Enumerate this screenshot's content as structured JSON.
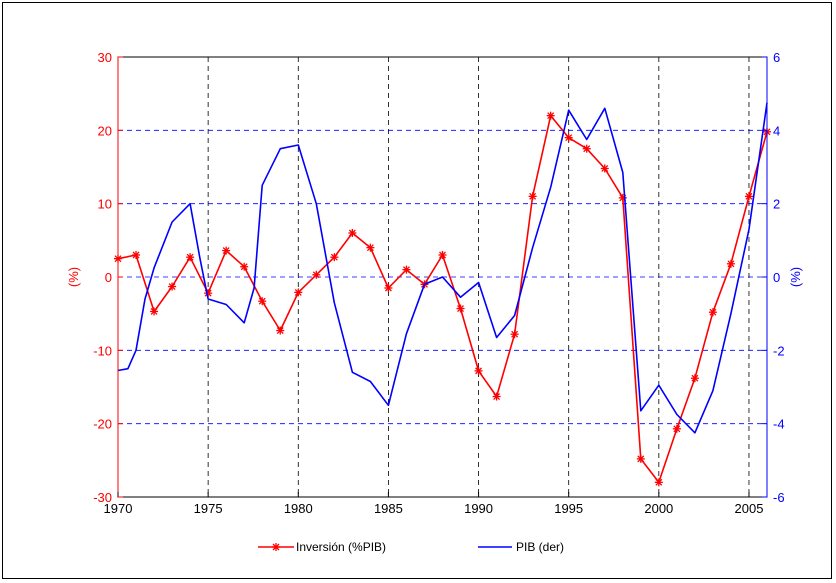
{
  "chart_data": {
    "type": "line",
    "x": [
      1970,
      1971,
      1972,
      1973,
      1974,
      1975,
      1976,
      1977,
      1978,
      1979,
      1980,
      1981,
      1982,
      1983,
      1984,
      1985,
      1986,
      1987,
      1988,
      1989,
      1990,
      1991,
      1992,
      1993,
      1994,
      1995,
      1996,
      1997,
      1998,
      1999,
      2000,
      2001,
      2002,
      2003,
      2004,
      2005,
      2006
    ],
    "x_ticks": [
      "1970",
      "1975",
      "1980",
      "1985",
      "1990",
      "1995",
      "2000",
      "2005"
    ],
    "xlim": [
      1970,
      2006
    ],
    "y_left": {
      "label": "(%)",
      "lim": [
        -30,
        30
      ],
      "ticks": [
        "-30",
        "-20",
        "-10",
        "0",
        "10",
        "20",
        "30"
      ],
      "color": "#ff0000"
    },
    "y_right": {
      "label": "(%)",
      "lim": [
        -6,
        6
      ],
      "ticks": [
        "-6",
        "-4",
        "-2",
        "0",
        "2",
        "4",
        "6"
      ],
      "color": "#0000ff"
    },
    "grid": true,
    "legend_position": "bottom",
    "series": [
      {
        "name": "Inversión (%PIB)",
        "axis": "left",
        "color": "#ff0000",
        "marker": "*",
        "values": [
          2.5,
          3.0,
          -4.7,
          -1.3,
          2.7,
          -2.2,
          3.6,
          1.4,
          -3.3,
          -7.3,
          -2.1,
          0.3,
          2.7,
          6.0,
          4.0,
          -1.5,
          1.0,
          -1.0,
          3.0,
          -4.3,
          -12.8,
          -16.3,
          -7.8,
          11.0,
          22.0,
          19.0,
          17.5,
          14.8,
          10.8,
          -24.8,
          -28.0,
          -20.7,
          -13.8,
          -4.8,
          1.8,
          11.0,
          19.8
        ]
      },
      {
        "name": "PIB (der)",
        "axis": "right",
        "color": "#0000ff",
        "marker": "none",
        "x": [
          1970,
          1970.55,
          1971,
          1971.5,
          1972,
          1973,
          1974,
          1974.55,
          1975,
          1976,
          1977,
          1977.55,
          1978,
          1979,
          1980,
          1981,
          1982,
          1983,
          1984,
          1985,
          1986,
          1987,
          1988,
          1989,
          1990,
          1991,
          1992,
          1993,
          1994,
          1995,
          1996,
          1997,
          1998,
          1999,
          2000,
          2001,
          2002,
          2003,
          2004,
          2005,
          2006
        ],
        "values": [
          -2.55,
          -2.5,
          -2.0,
          -0.6,
          0.25,
          1.5,
          2.0,
          0.5,
          -0.6,
          -0.75,
          -1.25,
          -0.3,
          2.5,
          3.5,
          3.6,
          2.0,
          -0.7,
          -2.6,
          -2.85,
          -3.5,
          -1.55,
          -0.2,
          0.0,
          -0.55,
          -0.15,
          -1.65,
          -1.05,
          0.8,
          2.45,
          4.55,
          3.75,
          4.6,
          2.85,
          -3.65,
          -2.95,
          -3.75,
          -4.25,
          -3.1,
          -1.0,
          1.3,
          4.75
        ]
      }
    ]
  }
}
